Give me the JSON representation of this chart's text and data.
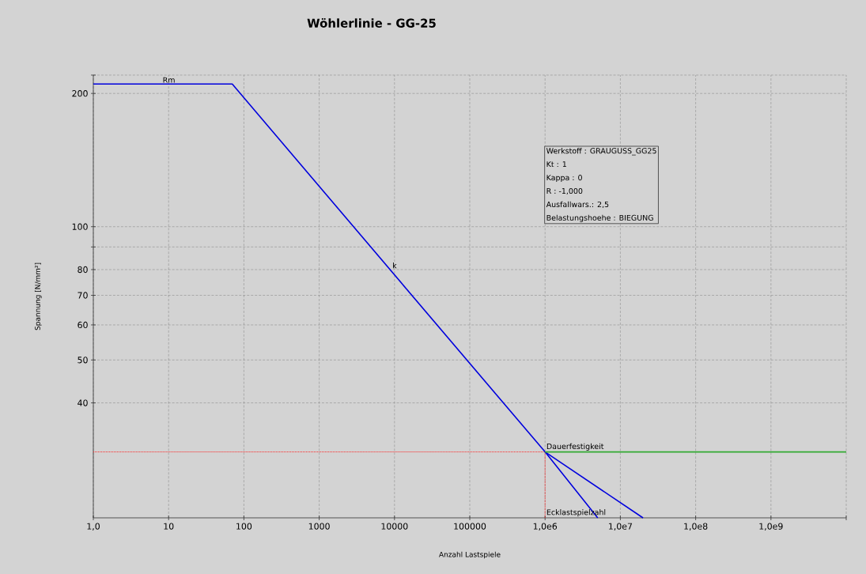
{
  "chart_data": {
    "type": "line",
    "title": "Wöhlerlinie - GG-25",
    "xlabel": "Anzahl Lastspiele",
    "ylabel": "Spannung [N/mm²]",
    "log": "xy",
    "grid": true,
    "xlim": [
      1,
      10000000000
    ],
    "ylim": [
      22,
      220
    ],
    "xticks": [
      {
        "value": 1,
        "label": "1,0"
      },
      10,
      100,
      1000,
      10000,
      100000,
      {
        "value": 1000000,
        "label": "1,0e6"
      },
      {
        "value": 10000000,
        "label": "1,0e7"
      },
      {
        "value": 100000000,
        "label": "1,0e8"
      },
      {
        "value": 1000000000,
        "label": "1,0e9"
      },
      {
        "value": 10000000000,
        "label": null
      }
    ],
    "yticks": [
      40,
      50,
      60,
      70,
      80,
      {
        "value": 90,
        "label": null
      },
      100,
      200,
      {
        "value": 220,
        "label": null
      }
    ],
    "series": [
      {
        "color": "#ff2222",
        "line_style": "dotted",
        "x": [
          1,
          1000000,
          1000000
        ],
        "values": [
          31,
          31,
          22
        ]
      },
      {
        "color": "#0000dd",
        "line_style": "solid",
        "x": [
          1,
          70,
          1000000,
          5000000
        ],
        "values": [
          210,
          210,
          31,
          22
        ]
      },
      {
        "color": "#0000dd",
        "line_style": "solid",
        "x": [
          1000000,
          20000000
        ],
        "values": [
          31,
          22
        ]
      },
      {
        "color": "#33aa33",
        "line_style": "solid",
        "x": [
          1000000,
          10000000000
        ],
        "values": [
          31,
          31
        ]
      }
    ],
    "annotations": [
      {
        "text": "Rm",
        "x": 8,
        "y": 210
      },
      {
        "text": "k",
        "x": 9000,
        "y": 80
      },
      {
        "text": "Dauerfestigkeit",
        "x": 1000000,
        "y": 31
      },
      {
        "text": "Ecklastspielzahl",
        "x": 1000000,
        "y": 22
      },
      "Werkstoff  :  GRAUGUSS_GG25",
      "Kt          :  1",
      "Kappa      :  0",
      "R            :  -1,000",
      "Ausfallwars.:  2,5",
      "Belastungshoehe   :  BIEGUNG"
    ]
  }
}
